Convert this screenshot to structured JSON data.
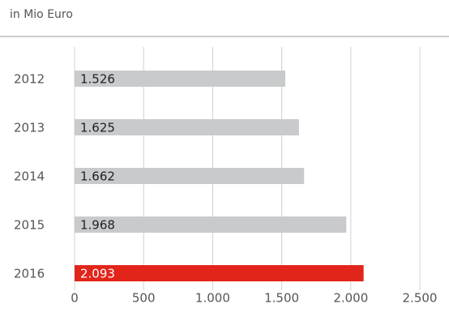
{
  "chart_data": {
    "type": "bar",
    "orientation": "horizontal",
    "subtitle": "in Mio Euro",
    "categories": [
      "2012",
      "2013",
      "2014",
      "2015",
      "2016"
    ],
    "values": [
      1526,
      1625,
      1662,
      1968,
      2093
    ],
    "value_labels": [
      "1.526",
      "1.625",
      "1.662",
      "1.968",
      "2.093"
    ],
    "colors": [
      "#c8cacc",
      "#c8cacc",
      "#c8cacc",
      "#c8cacc",
      "#e2251a"
    ],
    "value_label_colors": [
      "#222222",
      "#222222",
      "#222222",
      "#222222",
      "#ffffff"
    ],
    "xlim": [
      0,
      2500
    ],
    "xticks": [
      0,
      500,
      {
        "value": 1000,
        "label": "1.000"
      },
      {
        "value": 1500,
        "label": "1.500"
      },
      {
        "value": 2000,
        "label": "2.000"
      },
      {
        "value": 2500,
        "label": "2.500"
      }
    ],
    "grid": true
  }
}
